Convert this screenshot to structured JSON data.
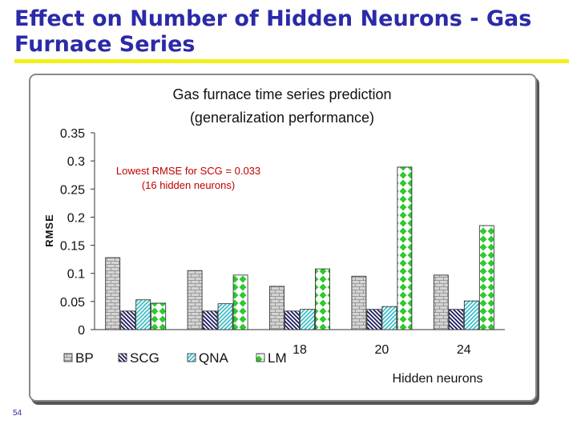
{
  "slide": {
    "title": "Effect on Number of Hidden Neurons - Gas\nFurnace Series",
    "page_number": "54"
  },
  "colors": {
    "title": "#2b2aa8",
    "title_rule": "#f2ef1a",
    "annotation": "#c00000",
    "BP": "#d4d4d4",
    "SCG": "#2a2a6a",
    "QNA": "#4fc6d0",
    "LM": "#33cc33"
  },
  "chart_data": {
    "type": "bar",
    "title": "Gas furnace time series prediction",
    "subtitle": "(generalization performance)",
    "ylabel": "RMSE",
    "xlabel": "Hidden neurons",
    "ylim": [
      0,
      0.35
    ],
    "y_ticks": [
      "0",
      "0.05",
      "0.1",
      "0.15",
      "0.2",
      "0.25",
      "0.3",
      "0.35"
    ],
    "categories": [
      "",
      "",
      "18",
      "20",
      "24"
    ],
    "series": [
      {
        "name": "BP",
        "values": [
          0.128,
          0.105,
          0.077,
          0.095,
          0.097
        ]
      },
      {
        "name": "SCG",
        "values": [
          0.033,
          0.033,
          0.033,
          0.036,
          0.036
        ]
      },
      {
        "name": "QNA",
        "values": [
          0.053,
          0.046,
          0.036,
          0.041,
          0.051
        ]
      },
      {
        "name": "LM",
        "values": [
          0.047,
          0.097,
          0.108,
          0.289,
          0.185
        ]
      }
    ],
    "annotation": "Lowest RMSE for SCG = 0.033\n(16 hidden neurons)",
    "legend_position": "bottom-left",
    "grid": false
  }
}
